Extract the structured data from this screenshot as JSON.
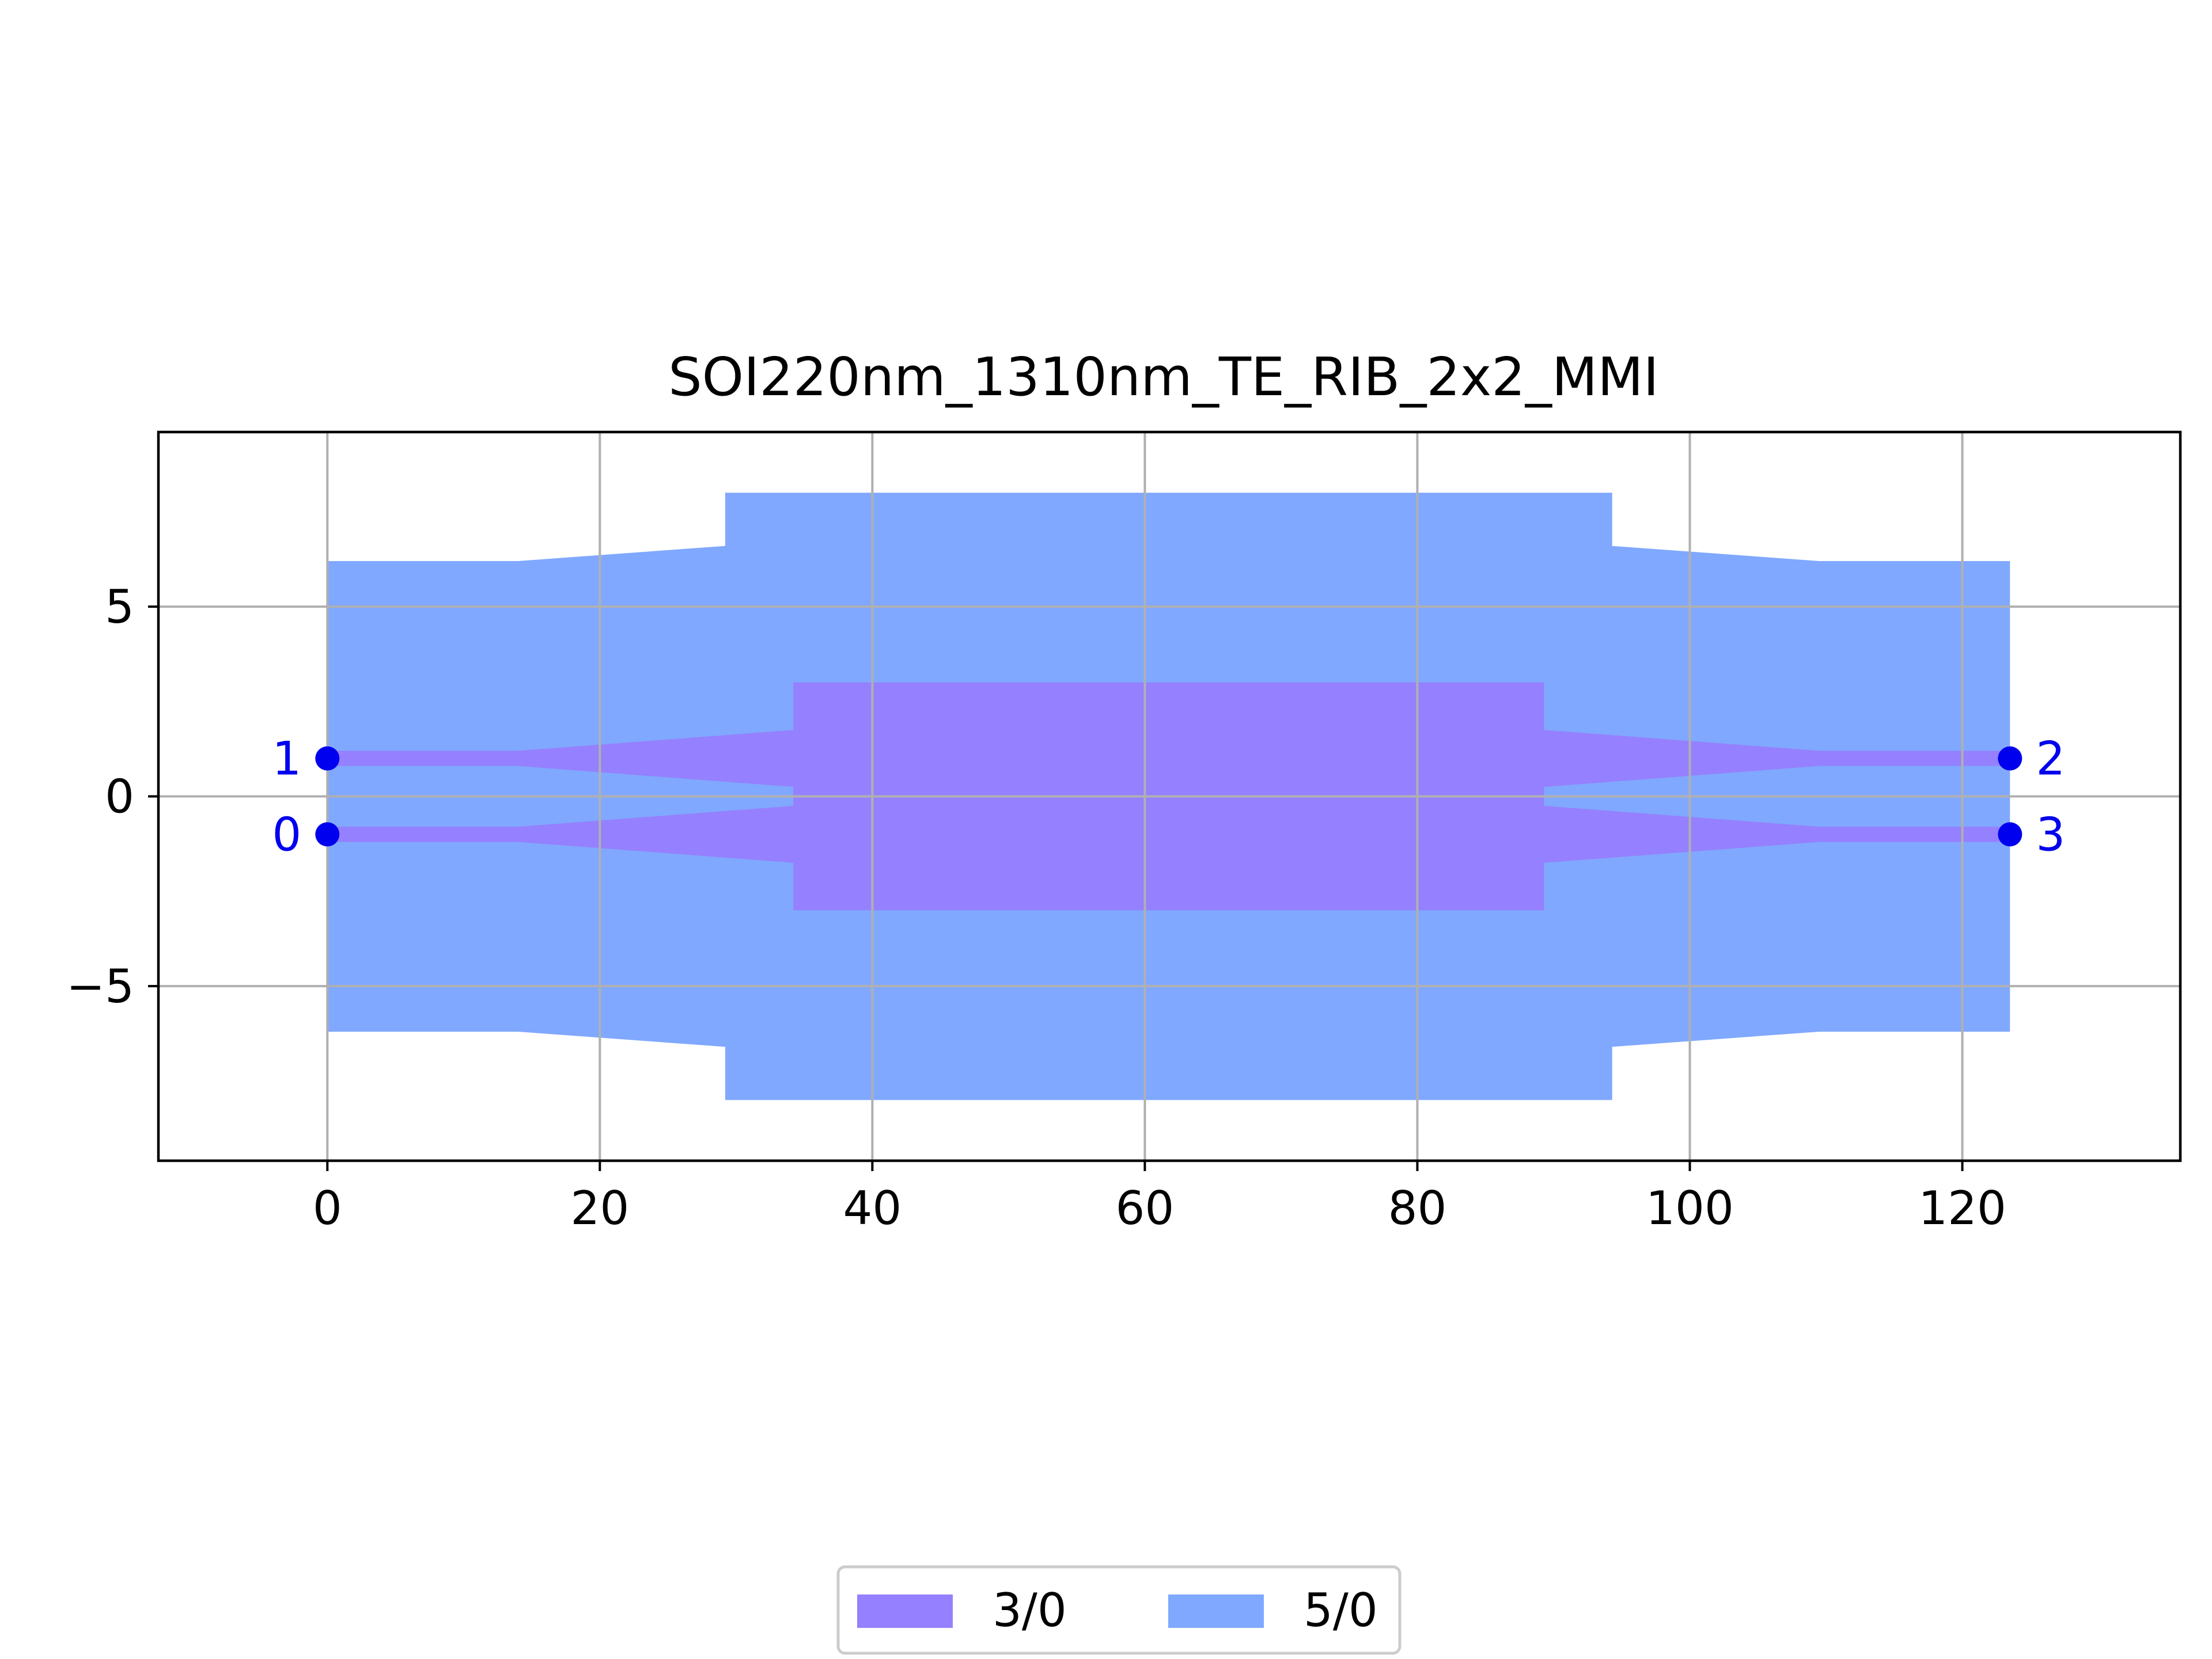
{
  "chart_data": {
    "type": "area",
    "title": "SOI220nm_1310nm_TE_RIB_2x2_MMI",
    "xlabel": "",
    "ylabel": "",
    "xlim": [
      -12.4,
      136
    ],
    "ylim": [
      -9.6,
      9.6
    ],
    "x_ticks": [
      0,
      20,
      40,
      60,
      80,
      100,
      120
    ],
    "y_ticks": [
      5,
      0,
      -5
    ],
    "x_tick_labels": [
      "0",
      "20",
      "40",
      "60",
      "80",
      "100",
      "120"
    ],
    "y_tick_labels": [
      "5",
      "0",
      "−5"
    ],
    "grid": true,
    "legend_position": "bottom-center",
    "series": [
      {
        "name": "5/0",
        "color": "#80a8ff",
        "polygons": [
          [
            [
              0,
              6.2
            ],
            [
              14,
              6.2
            ],
            [
              29.2,
              6.6
            ],
            [
              29.2,
              8.0
            ],
            [
              94.3,
              8.0
            ],
            [
              94.3,
              6.6
            ],
            [
              109.5,
              6.2
            ],
            [
              123.5,
              6.2
            ],
            [
              123.5,
              -6.2
            ],
            [
              109.5,
              -6.2
            ],
            [
              94.3,
              -6.6
            ],
            [
              94.3,
              -8.0
            ],
            [
              29.2,
              -8.0
            ],
            [
              29.2,
              -6.6
            ],
            [
              14,
              -6.2
            ],
            [
              0,
              -6.2
            ]
          ]
        ]
      },
      {
        "name": "3/0",
        "color": "#9580ff",
        "polygons": [
          [
            [
              34.2,
              3.0
            ],
            [
              89.3,
              3.0
            ],
            [
              89.3,
              -3.0
            ],
            [
              34.2,
              -3.0
            ]
          ],
          [
            [
              0,
              1.2
            ],
            [
              14,
              1.2
            ],
            [
              34.2,
              1.75
            ],
            [
              34.2,
              0.25
            ],
            [
              14,
              0.8
            ],
            [
              0,
              0.8
            ]
          ],
          [
            [
              0,
              -0.8
            ],
            [
              14,
              -0.8
            ],
            [
              34.2,
              -0.25
            ],
            [
              34.2,
              -1.75
            ],
            [
              14,
              -1.2
            ],
            [
              0,
              -1.2
            ]
          ],
          [
            [
              89.3,
              1.75
            ],
            [
              109.5,
              1.2
            ],
            [
              123.5,
              1.2
            ],
            [
              123.5,
              0.8
            ],
            [
              109.5,
              0.8
            ],
            [
              89.3,
              0.25
            ]
          ],
          [
            [
              89.3,
              -0.25
            ],
            [
              109.5,
              -0.8
            ],
            [
              123.5,
              -0.8
            ],
            [
              123.5,
              -1.2
            ],
            [
              109.5,
              -1.2
            ],
            [
              89.3,
              -1.75
            ]
          ]
        ]
      }
    ],
    "legend_order": [
      "3/0",
      "5/0"
    ],
    "ports": {
      "color": "#0000ee",
      "points": [
        {
          "label": "0",
          "x": 0,
          "y": -1.0,
          "side": "left"
        },
        {
          "label": "1",
          "x": 0,
          "y": 1.0,
          "side": "left"
        },
        {
          "label": "2",
          "x": 123.5,
          "y": 1.0,
          "side": "right"
        },
        {
          "label": "3",
          "x": 123.5,
          "y": -1.0,
          "side": "right"
        }
      ]
    }
  }
}
